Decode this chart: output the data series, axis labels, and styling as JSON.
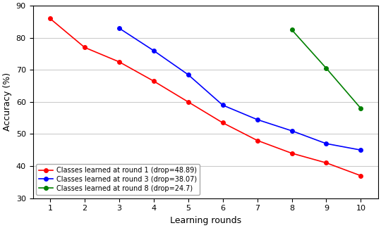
{
  "series": [
    {
      "label": "Classes learned at round 1 (drop=48.89)",
      "color": "red",
      "x": [
        1,
        2,
        3,
        4,
        5,
        6,
        7,
        8,
        9,
        10
      ],
      "y": [
        86,
        77,
        72.5,
        66.5,
        60,
        53.5,
        48,
        44,
        41,
        37
      ]
    },
    {
      "label": "Classes learned at round 3 (drop=38.07)",
      "color": "blue",
      "x": [
        3,
        4,
        5,
        6,
        7,
        8,
        9,
        10
      ],
      "y": [
        83,
        76,
        68.5,
        59,
        54.5,
        51,
        47,
        45
      ]
    },
    {
      "label": "Classes learned at round 8 (drop=24.7)",
      "color": "green",
      "x": [
        8,
        9,
        10
      ],
      "y": [
        82.5,
        70.5,
        58
      ]
    }
  ],
  "xlabel": "Learning rounds",
  "ylabel": "Accuracy (%)",
  "ylim": [
    30,
    90
  ],
  "xlim": [
    0.5,
    10.5
  ],
  "xticks": [
    1,
    2,
    3,
    4,
    5,
    6,
    7,
    8,
    9,
    10
  ],
  "yticks": [
    30,
    40,
    50,
    60,
    70,
    80,
    90
  ],
  "legend_loc": "lower left",
  "marker": "o",
  "markersize": 4,
  "linewidth": 1.2,
  "background_color": "#ffffff",
  "grid_color": "#cccccc",
  "xlabel_fontsize": 9,
  "ylabel_fontsize": 9,
  "tick_fontsize": 8,
  "legend_fontsize": 7
}
